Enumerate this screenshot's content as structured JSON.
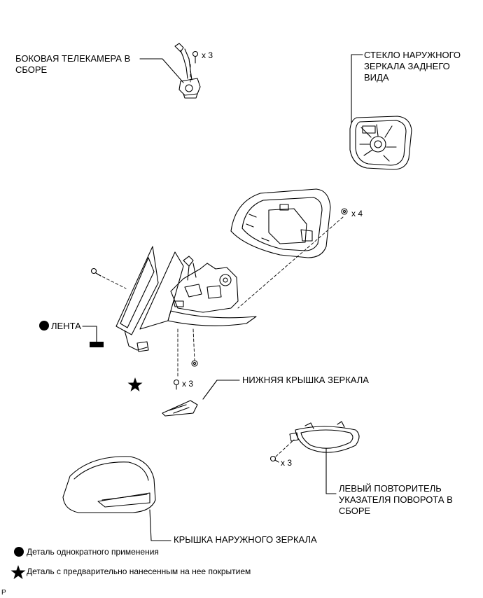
{
  "parts": {
    "side_camera": "БОКОВАЯ ТЕЛЕКАМЕРА В\nСБОРЕ",
    "mirror_glass": "СТЕКЛО НАРУЖНОГО\nЗЕРКАЛА ЗАДНЕГО\nВИДА",
    "tape": "ЛЕНТА",
    "lower_cover": "НИЖНЯЯ КРЫШКА ЗЕРКАЛА",
    "turn_signal": "ЛЕВЫЙ ПОВТОРИТЕЛЬ\nУКАЗАТЕЛЯ ПОВОРОТА В\nСБОРЕ",
    "outer_cover": "КРЫШКА НАРУЖНОГО ЗЕРКАЛА"
  },
  "quantities": {
    "camera_screws": "x 3",
    "housing_screws": "x 4",
    "lower_screws": "x 3",
    "signal_screws": "x 3"
  },
  "legend": {
    "non_reusable": "Деталь однократного применения",
    "precoated": "Деталь с предварительно нанесенным на нее покрытием"
  },
  "corner_mark": "P"
}
